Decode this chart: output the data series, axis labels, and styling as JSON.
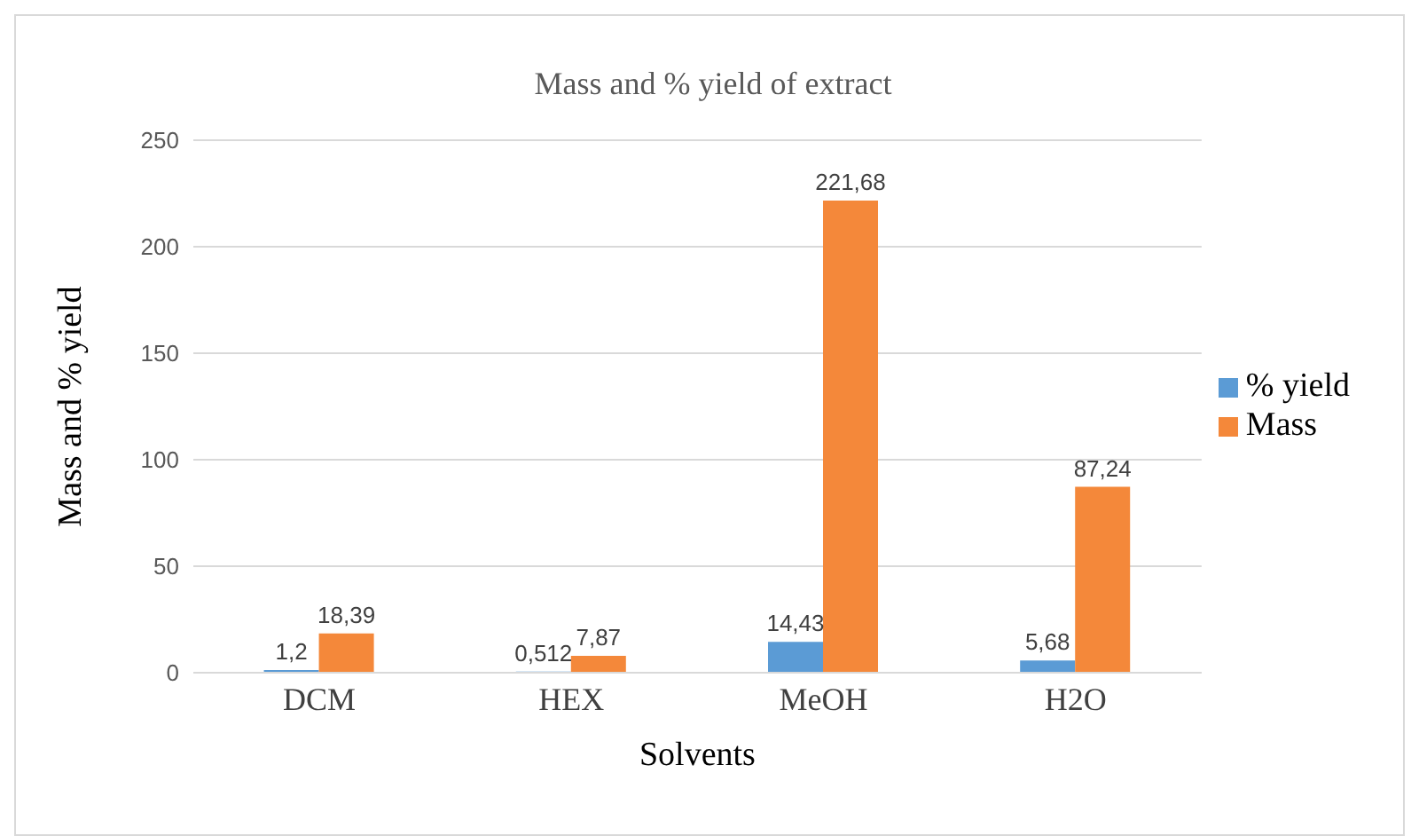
{
  "chart_data": {
    "type": "bar",
    "title": "Mass and % yield of extract",
    "xlabel": "Solvents",
    "ylabel": "Mass and % yield",
    "categories": [
      "DCM",
      "HEX",
      "MeOH",
      "H2O"
    ],
    "series": [
      {
        "name": "% yield",
        "color": "#5b9bd5",
        "values": [
          1.2,
          0.512,
          14.43,
          5.68
        ],
        "value_labels": [
          "1,2",
          "0,512",
          "14,43",
          "5,68"
        ]
      },
      {
        "name": "Mass",
        "color": "#f4883a",
        "values": [
          18.39,
          7.87,
          221.68,
          87.24
        ],
        "value_labels": [
          "18,39",
          "7,87",
          "221,68",
          "87,24"
        ]
      }
    ],
    "ylim": [
      0,
      250
    ],
    "yticks": [
      0,
      50,
      100,
      150,
      200,
      250
    ],
    "grid": "y",
    "legend": "right"
  }
}
